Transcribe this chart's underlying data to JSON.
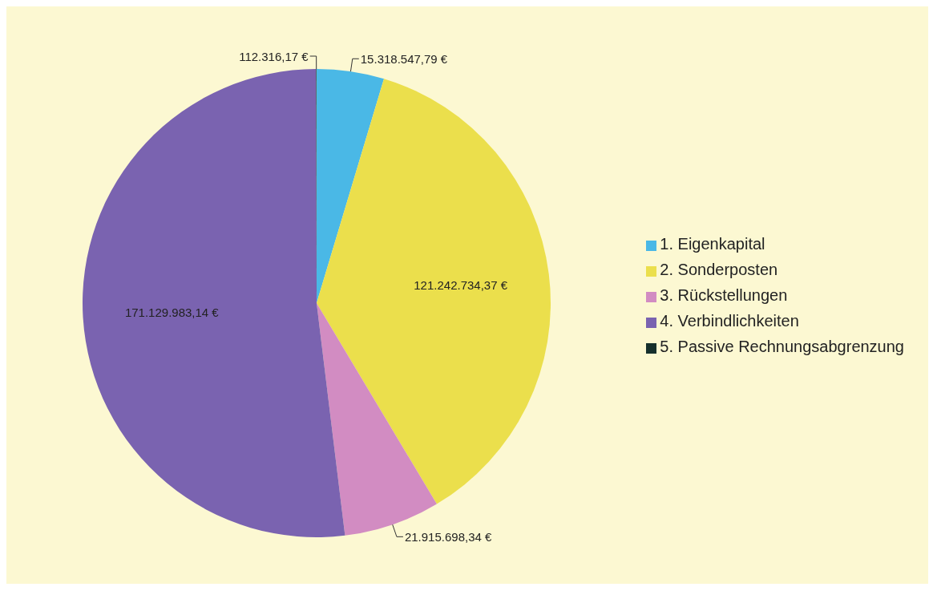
{
  "chart_data": {
    "type": "pie",
    "categories": [
      "1. Eigenkapital",
      "2. Sonderposten",
      "3. Rückstellungen",
      "4. Verbindlichkeiten",
      "5. Passive Rechnungsabgrenzung"
    ],
    "values": [
      15318547.79,
      121242734.37,
      21915698.34,
      171129983.14,
      112316.17
    ],
    "value_labels": [
      "15.318.547,79 €",
      "121.242.734,37 €",
      "21.915.698,34 €",
      "171.129.983,14 €",
      "112.316,17 €"
    ],
    "colors": [
      "#4ab8e6",
      "#ebdf4c",
      "#d28cc2",
      "#7a63b0",
      "#16302c"
    ],
    "legend": "right"
  }
}
